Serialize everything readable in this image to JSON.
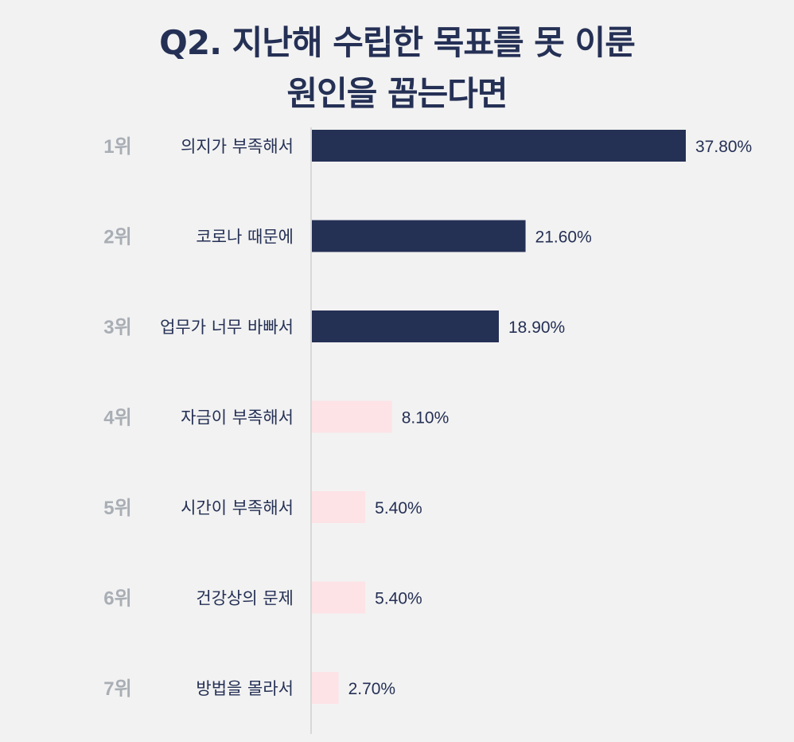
{
  "chart_data": {
    "type": "bar",
    "orientation": "horizontal",
    "title_lines": [
      "Q2. 지난해 수립한 목표를 못 이룬",
      "원인을 꼽는다면"
    ],
    "ranks": [
      "1위",
      "2위",
      "3위",
      "4위",
      "5위",
      "6위",
      "7위"
    ],
    "categories": [
      "의지가 부족해서",
      "코로나 때문에",
      "업무가 너무 바빠서",
      "자금이 부족해서",
      "시간이 부족해서",
      "건강상의 문제",
      "방법을 몰라서"
    ],
    "values": [
      37.8,
      21.6,
      18.9,
      8.1,
      5.4,
      5.4,
      2.7
    ],
    "value_labels": [
      "37.80%",
      "21.60%",
      "18.90%",
      "8.10%",
      "5.40%",
      "5.40%",
      "2.70%"
    ],
    "highlight_top_n": 3,
    "xlim": [
      0,
      37.8
    ],
    "xlabel": "",
    "ylabel": "",
    "colors": {
      "highlight": "#253055",
      "other": "#fde2e6",
      "rank_text": "#a9aeb5",
      "label_text": "#253055",
      "axis": "#cfcfcf"
    }
  }
}
